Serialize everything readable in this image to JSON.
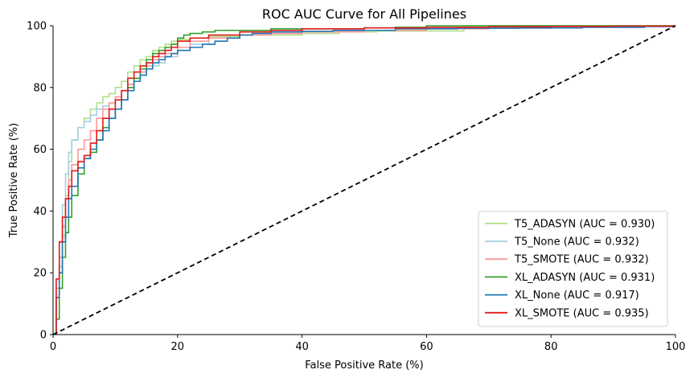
{
  "chart_data": {
    "type": "line",
    "title": "ROC AUC Curve for All Pipelines",
    "xlabel": "False Positive Rate (%)",
    "ylabel": "True Positive Rate (%)",
    "xlim": [
      0,
      100
    ],
    "ylim": [
      0,
      100
    ],
    "xticks": [
      "0",
      "20",
      "40",
      "60",
      "80",
      "100"
    ],
    "yticks": [
      "0",
      "20",
      "40",
      "60",
      "80",
      "100"
    ],
    "grid": false,
    "legend_position": "lower-right",
    "series": [
      {
        "name": "T5_ADASYN (AUC = 0.930)",
        "color": "#b2df8a",
        "x": [
          0,
          0.5,
          1,
          1.5,
          2,
          2.5,
          3,
          4,
          5,
          6,
          7,
          8,
          9,
          10,
          11,
          12,
          13,
          14,
          15,
          16,
          17,
          18,
          19,
          20,
          22,
          25,
          30,
          40,
          46,
          52,
          58,
          66,
          66,
          75,
          85,
          95,
          100
        ],
        "y": [
          0,
          12,
          22,
          32,
          45,
          56,
          63,
          67,
          70,
          73,
          75,
          77,
          78,
          80,
          82,
          85,
          87,
          89,
          90,
          92,
          93,
          94,
          95,
          95.5,
          96,
          96.5,
          97,
          97.5,
          98,
          98.3,
          98.3,
          98.5,
          100,
          100,
          100,
          100,
          100
        ]
      },
      {
        "name": "T5_None (AUC = 0.932)",
        "color": "#a6cee3",
        "x": [
          0,
          0.5,
          1,
          1.5,
          2,
          2.5,
          3,
          4,
          5,
          6,
          7,
          8,
          9,
          10,
          11,
          12,
          13,
          14,
          15,
          16,
          17,
          18,
          20,
          22,
          25,
          30,
          35,
          40,
          45,
          50,
          55,
          60,
          70,
          80,
          90,
          100
        ],
        "y": [
          0,
          18,
          30,
          42,
          52,
          59,
          63,
          67,
          69,
          71,
          73,
          74,
          75,
          77,
          79,
          81,
          83,
          85,
          86,
          87,
          88,
          90,
          92,
          94,
          96,
          97,
          97.5,
          98,
          98.2,
          98.5,
          99,
          99.2,
          99.5,
          99.7,
          99.8,
          100
        ]
      },
      {
        "name": "T5_SMOTE (AUC = 0.932)",
        "color": "#fb9a99",
        "x": [
          0,
          0.5,
          1,
          1.5,
          2,
          2.5,
          3,
          4,
          5,
          6,
          7,
          8,
          9,
          10,
          11,
          12,
          13,
          14,
          15,
          16,
          17,
          18,
          20,
          22,
          25,
          30,
          35,
          40,
          50,
          60,
          70,
          80,
          90,
          95,
          100
        ],
        "y": [
          0,
          15,
          25,
          35,
          44,
          50,
          55,
          60,
          63,
          66,
          70,
          73,
          75,
          77,
          79,
          81,
          83,
          85,
          87,
          89,
          90,
          91,
          93,
          95,
          96,
          97,
          97.5,
          98,
          98.5,
          99,
          99.2,
          99.5,
          99.5,
          99.7,
          100
        ]
      },
      {
        "name": "XL_ADASYN (AUC = 0.931)",
        "color": "#33a02c",
        "x": [
          0,
          0.5,
          1,
          1.5,
          2,
          2.5,
          3,
          4,
          5,
          6,
          7,
          8,
          9,
          10,
          11,
          12,
          13,
          14,
          15,
          16,
          17,
          18,
          19,
          20,
          21,
          22,
          24,
          26,
          30,
          35,
          40,
          50,
          55,
          60,
          80,
          100
        ],
        "y": [
          0,
          5,
          15,
          25,
          33,
          38,
          45,
          52,
          57,
          59,
          63,
          67,
          70,
          73,
          76,
          80,
          83,
          86,
          89,
          91,
          92,
          93,
          94,
          96,
          97,
          97.5,
          98,
          98.5,
          98.5,
          99,
          99,
          99.3,
          99.5,
          100,
          100,
          100
        ]
      },
      {
        "name": "XL_None (AUC = 0.917)",
        "color": "#1f78b4",
        "x": [
          0,
          0.5,
          1,
          1.5,
          2,
          2.5,
          3,
          4,
          5,
          6,
          7,
          8,
          9,
          10,
          11,
          12,
          13,
          14,
          15,
          16,
          17,
          18,
          19,
          20,
          22,
          24,
          26,
          28,
          30,
          32,
          35,
          40,
          45,
          55,
          65,
          75,
          85,
          95,
          100
        ],
        "y": [
          0,
          12,
          20,
          30,
          38,
          44,
          48,
          54,
          57,
          60,
          63,
          66,
          70,
          73,
          76,
          79,
          82,
          84,
          86,
          88,
          89,
          90,
          91,
          92,
          93,
          94,
          95,
          96,
          97,
          97.5,
          98,
          98.2,
          98.5,
          99,
          99.2,
          99.3,
          99.5,
          99.8,
          100
        ]
      },
      {
        "name": "XL_SMOTE (AUC = 0.935)",
        "color": "#e31a1c",
        "x": [
          0,
          0.5,
          1,
          1.5,
          2,
          2.5,
          3,
          4,
          5,
          6,
          7,
          8,
          9,
          10,
          11,
          12,
          13,
          14,
          15,
          16,
          17,
          18,
          19,
          20,
          22,
          25,
          30,
          35,
          40,
          50,
          60,
          70,
          80,
          90,
          100
        ],
        "y": [
          0,
          18,
          30,
          38,
          44,
          48,
          53,
          56,
          58,
          62,
          66,
          70,
          73,
          76,
          79,
          83,
          85,
          87,
          88,
          90,
          91,
          92,
          93,
          95,
          96,
          97,
          98,
          98.5,
          99,
          99.3,
          99.5,
          99.7,
          99.8,
          99.9,
          100
        ]
      }
    ],
    "diagonal": {
      "x": [
        0,
        100
      ],
      "y": [
        0,
        100
      ],
      "color": "#000000",
      "style": "dashed"
    }
  }
}
